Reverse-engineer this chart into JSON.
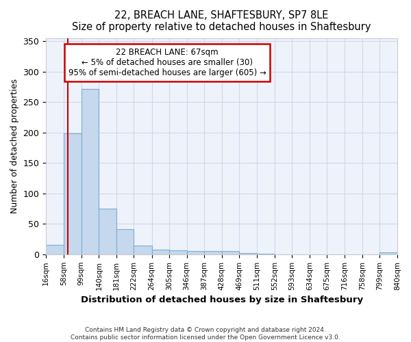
{
  "title": "22, BREACH LANE, SHAFTESBURY, SP7 8LE",
  "subtitle": "Size of property relative to detached houses in Shaftesbury",
  "xlabel": "Distribution of detached houses by size in Shaftesbury",
  "ylabel": "Number of detached properties",
  "bar_values": [
    16,
    199,
    271,
    75,
    41,
    14,
    8,
    6,
    5,
    5,
    5,
    2,
    1,
    0,
    0,
    0,
    0,
    0,
    0,
    3
  ],
  "bin_edges": [
    16,
    58,
    99,
    140,
    181,
    222,
    264,
    305,
    346,
    387,
    428,
    469,
    511,
    552,
    593,
    634,
    675,
    716,
    758,
    799,
    840
  ],
  "bar_color": "#c5d8ee",
  "bar_edge_color": "#7aaed0",
  "background_color": "#eef2fb",
  "grid_color": "#d0d8ec",
  "annotation_line1": "22 BREACH LANE: 67sqm",
  "annotation_line2": "← 5% of detached houses are smaller (30)",
  "annotation_line3": "95% of semi-detached houses are larger (605) →",
  "annotation_box_color": "#ffffff",
  "annotation_box_edge_color": "#cc0000",
  "property_size": 67,
  "vline_color": "#cc0000",
  "tick_labels": [
    "16sqm",
    "58sqm",
    "99sqm",
    "140sqm",
    "181sqm",
    "222sqm",
    "264sqm",
    "305sqm",
    "346sqm",
    "387sqm",
    "428sqm",
    "469sqm",
    "511sqm",
    "552sqm",
    "593sqm",
    "634sqm",
    "675sqm",
    "716sqm",
    "758sqm",
    "799sqm",
    "840sqm"
  ],
  "ylim": [
    0,
    355
  ],
  "yticks": [
    0,
    50,
    100,
    150,
    200,
    250,
    300,
    350
  ],
  "footnote1": "Contains HM Land Registry data © Crown copyright and database right 2024.",
  "footnote2": "Contains public sector information licensed under the Open Government Licence v3.0."
}
